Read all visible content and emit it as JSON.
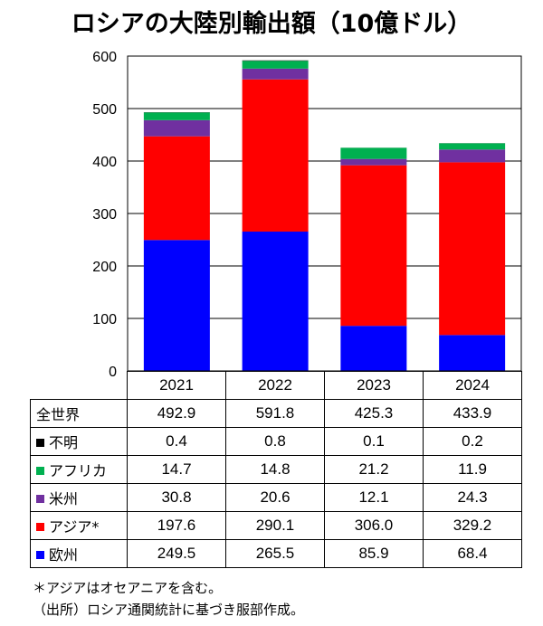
{
  "title": "ロシアの大陸別輸出額（10億ドル）",
  "chart_data": {
    "type": "bar",
    "stacked": true,
    "title": "ロシアの大陸別輸出額（10億ドル）",
    "categories": [
      "2021",
      "2022",
      "2023",
      "2024"
    ],
    "ylim": [
      0,
      600
    ],
    "yticks": [
      0,
      100,
      200,
      300,
      400,
      500,
      600
    ],
    "grid": true,
    "series": [
      {
        "name": "欧州",
        "color": "#0000ff",
        "values": [
          249.5,
          265.5,
          85.9,
          68.4
        ],
        "labels": [
          "249.5",
          "265.5",
          "85.9",
          "68.4"
        ]
      },
      {
        "name": "アジア*",
        "color": "#ff0000",
        "values": [
          197.6,
          290.1,
          306.0,
          329.2
        ],
        "labels": [
          "197.6",
          "290.1",
          "306.0",
          "329.2"
        ]
      },
      {
        "name": "米州",
        "color": "#7030a0",
        "values": [
          30.8,
          20.6,
          12.1,
          24.3
        ],
        "labels": [
          "30.8",
          "20.6",
          "12.1",
          "24.3"
        ]
      },
      {
        "name": "アフリカ",
        "color": "#00b050",
        "values": [
          14.7,
          14.8,
          21.2,
          11.9
        ],
        "labels": [
          "14.7",
          "14.8",
          "21.2",
          "11.9"
        ]
      },
      {
        "name": "不明",
        "color": "#000000",
        "values": [
          0.4,
          0.8,
          0.1,
          0.2
        ],
        "labels": [
          "0.4",
          "0.8",
          "0.1",
          "0.2"
        ]
      }
    ],
    "totals": {
      "name": "全世界",
      "values": [
        492.9,
        591.8,
        425.3,
        433.9
      ],
      "labels": [
        "492.9",
        "591.8",
        "425.3",
        "433.9"
      ]
    }
  },
  "notes": [
    "＊アジアはオセアニアを含む。",
    "（出所）ロシア通関統計に基づき服部作成。"
  ]
}
